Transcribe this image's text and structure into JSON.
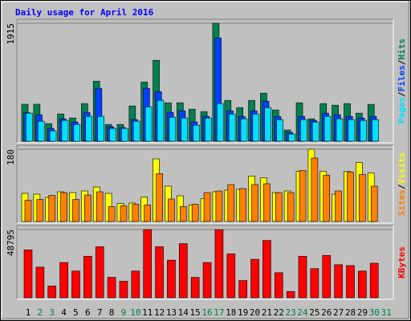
{
  "title": "Daily usage for April 2016",
  "legend_separator": "/",
  "chart_data": [
    {
      "type": "bar",
      "ylim": [
        0,
        1915
      ],
      "yticks": [
        1915
      ],
      "series": [
        {
          "name": "Hits",
          "color": "#008050",
          "values": [
            600,
            600,
            286,
            442,
            377,
            611,
            975,
            273,
            273,
            572,
            962,
            1313,
            624,
            624,
            520,
            481,
            1915,
            663,
            546,
            663,
            780,
            507,
            182,
            624,
            364,
            611,
            585,
            611,
            455,
            598,
            0
          ]
        },
        {
          "name": "Files",
          "color": "#0040ff",
          "values": [
            460,
            430,
            208,
            364,
            312,
            468,
            858,
            235,
            221,
            351,
            858,
            806,
            468,
            494,
            312,
            403,
            1677,
            494,
            403,
            494,
            650,
            403,
            143,
            403,
            338,
            455,
            429,
            403,
            377,
            403,
            0
          ]
        },
        {
          "name": "Pages",
          "color": "#00e0ff",
          "values": [
            455,
            325,
            169,
            338,
            273,
            403,
            403,
            208,
            208,
            325,
            559,
            663,
            390,
            377,
            260,
            377,
            611,
            442,
            364,
            442,
            546,
            351,
            117,
            351,
            312,
            403,
            364,
            351,
            338,
            351,
            0
          ]
        }
      ]
    },
    {
      "type": "bar",
      "ylim": [
        0,
        180
      ],
      "yticks": [
        180
      ],
      "series": [
        {
          "name": "Visits",
          "color": "#ffff00",
          "values": [
            70,
            68,
            60,
            74,
            72,
            76,
            86,
            70,
            45,
            46,
            61,
            156,
            88,
            64,
            41,
            57,
            74,
            78,
            80,
            113,
            109,
            72,
            76,
            125,
            180,
            125,
            68,
            125,
            147,
            121,
            0
          ]
        },
        {
          "name": "Sites",
          "color": "#ff8000",
          "values": [
            53,
            55,
            65,
            72,
            55,
            66,
            74,
            37,
            39,
            43,
            41,
            119,
            56,
            37,
            43,
            72,
            76,
            92,
            82,
            92,
            94,
            72,
            72,
            127,
            158,
            115,
            76,
            123,
            117,
            88,
            0
          ]
        }
      ]
    },
    {
      "type": "bar",
      "ylim": [
        0,
        48795
      ],
      "yticks": [
        48795
      ],
      "categories": [
        "1",
        "2",
        "3",
        "4",
        "5",
        "6",
        "7",
        "8",
        "9",
        "10",
        "11",
        "12",
        "13",
        "14",
        "15",
        "16",
        "17",
        "18",
        "19",
        "20",
        "21",
        "22",
        "23",
        "24",
        "25",
        "26",
        "27",
        "28",
        "29",
        "30",
        "31"
      ],
      "category_colors": [
        "#000000",
        "#008040",
        "#008040",
        "#000000",
        "#000000",
        "#000000",
        "#000000",
        "#000000",
        "#008040",
        "#008040",
        "#000000",
        "#000000",
        "#000000",
        "#000000",
        "#000000",
        "#008040",
        "#008040",
        "#000000",
        "#000000",
        "#000000",
        "#000000",
        "#000000",
        "#008040",
        "#008040",
        "#000000",
        "#000000",
        "#000000",
        "#000000",
        "#000000",
        "#008040",
        "#008040"
      ],
      "series": [
        {
          "name": "KBytes",
          "color": "#ff0000",
          "values": [
            34200,
            21900,
            8400,
            25200,
            19100,
            29700,
            36500,
            14600,
            11800,
            19100,
            48795,
            36500,
            26900,
            38700,
            14600,
            25200,
            48700,
            31400,
            12300,
            27500,
            41000,
            17900,
            4500,
            29700,
            20800,
            30300,
            23600,
            23000,
            19100,
            24700,
            0
          ]
        }
      ]
    }
  ]
}
